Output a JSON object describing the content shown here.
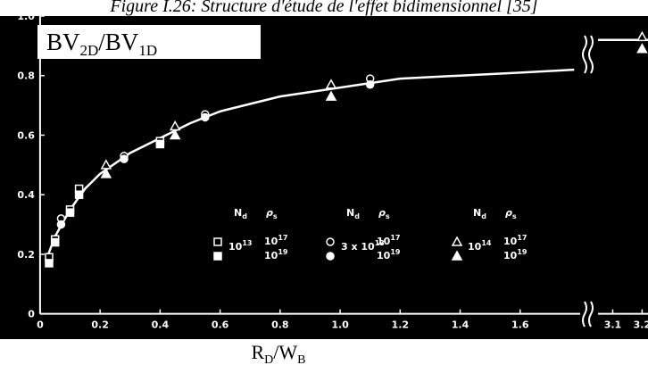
{
  "chart_data": {
    "type": "scatter",
    "title": "Figure I.26: Structure d'étude de l'effet bidimensionnel [35]",
    "y_label": [
      "BV",
      "2D",
      "/BV",
      "1D"
    ],
    "x_label": [
      "R",
      "D",
      "/W",
      "B"
    ],
    "xlim": [
      -0.08,
      1.8
    ],
    "x2lim": [
      3.05,
      3.22
    ],
    "ylim": [
      -0.085,
      1.0
    ],
    "xticks": [
      0,
      0.2,
      0.4,
      0.6,
      0.8,
      {
        "value": 1,
        "label": "1.0"
      },
      1.2,
      1.4,
      1.6
    ],
    "x2ticks": [
      3.1,
      3.2
    ],
    "yticks": [
      0,
      0.2,
      0.4,
      0.6,
      0.8,
      {
        "value": 1,
        "label": "1.0"
      }
    ],
    "curve": {
      "x": [
        0.02,
        0.05,
        0.1,
        0.15,
        0.2,
        0.3,
        0.4,
        0.5,
        0.6,
        0.8,
        1.0,
        1.2,
        1.4,
        1.6,
        1.78,
        null,
        3.05,
        3.22
      ],
      "values": [
        0.18,
        0.26,
        0.35,
        0.42,
        0.47,
        0.54,
        0.59,
        0.64,
        0.68,
        0.73,
        0.76,
        0.79,
        0.8,
        0.81,
        0.82,
        null,
        0.92,
        0.92
      ],
      "color": "#ffffff"
    },
    "series": [
      {
        "marker": "square",
        "filled": false,
        "x": [
          0.03,
          0.05,
          0.1,
          0.13,
          0.4
        ],
        "values": [
          0.19,
          0.25,
          0.35,
          0.42,
          0.58
        ]
      },
      {
        "marker": "square",
        "filled": true,
        "x": [
          0.03,
          0.05,
          0.1,
          0.13,
          0.4
        ],
        "values": [
          0.17,
          0.24,
          0.34,
          0.4,
          0.57
        ]
      },
      {
        "marker": "circle",
        "filled": false,
        "x": [
          0.07,
          0.28,
          0.55,
          1.1
        ],
        "values": [
          0.32,
          0.53,
          0.67,
          0.79
        ]
      },
      {
        "marker": "circle",
        "filled": true,
        "x": [
          0.07,
          0.28,
          0.55,
          1.1
        ],
        "values": [
          0.3,
          0.52,
          0.66,
          0.77
        ]
      },
      {
        "marker": "triangle",
        "filled": false,
        "x": [
          0.22,
          0.45,
          0.97,
          3.2
        ],
        "values": [
          0.5,
          0.63,
          0.77,
          0.93
        ]
      },
      {
        "marker": "triangle",
        "filled": true,
        "x": [
          0.22,
          0.45,
          0.97,
          3.2
        ],
        "values": [
          0.47,
          0.6,
          0.73,
          0.89
        ]
      }
    ],
    "legend": {
      "nd": [
        "N",
        "d"
      ],
      "rho": [
        "ρ",
        "s"
      ],
      "groups": [
        {
          "nd": [
            "10",
            "13"
          ],
          "rho": [
            [
              "10",
              "17"
            ],
            [
              "10",
              "19"
            ]
          ]
        },
        {
          "nd": [
            "3 x 10",
            "13"
          ],
          "rho": [
            [
              "10",
              "17"
            ],
            [
              "10",
              "19"
            ]
          ]
        },
        {
          "nd": [
            "10",
            "14"
          ],
          "rho": [
            [
              "10",
              "17"
            ],
            [
              "10",
              "19"
            ]
          ]
        }
      ]
    }
  }
}
